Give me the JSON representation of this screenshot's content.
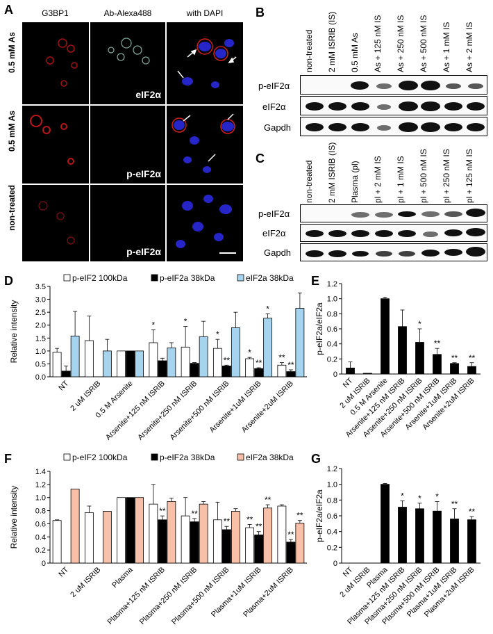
{
  "panelA": {
    "letter": "A",
    "col_titles": [
      "G3BP1",
      "Ab-Alexa488",
      "with DAPI"
    ],
    "row_labels": [
      "0.5 mM As",
      "0.5 mM As",
      "non-treated"
    ],
    "image_labels": [
      "eIF2α",
      "p-eIF2α",
      "p-eIF2α"
    ]
  },
  "panelB": {
    "letter": "B",
    "lanes": [
      "non-treated",
      "2 mM ISRIB (IS)",
      "0.5 mM As",
      "As + 125 nM IS",
      "As + 250 nM IS",
      "As + 500 nM IS",
      "As + 1 mM IS",
      "As + 2 mM IS"
    ],
    "rows": [
      "p-eIF2α",
      "eIF2α",
      "Gapdh"
    ]
  },
  "panelC": {
    "letter": "C",
    "lanes": [
      "non-treated",
      "2 mM ISRIB (IS)",
      "Plasma (pl)",
      "pl + 2 mM IS",
      "pl + 1 mM IS",
      "pl + 500 nM IS",
      "pl + 250 nM IS",
      "pl + 125 nM IS"
    ],
    "rows": [
      "p-eIF2α",
      "eIF2α",
      "Gapdh"
    ]
  },
  "colors": {
    "white_bar": "#ffffff",
    "black_bar": "#000000",
    "blue_bar": "#a6d4ee",
    "salmon_bar": "#f8c0a8"
  },
  "chart_data": [
    {
      "panel": "D",
      "type": "bar",
      "ylabel": "Relative intensity",
      "ylim": [
        0,
        3.5
      ],
      "yticks": [
        "0.0",
        "0.5",
        "1.0",
        "1.5",
        "2.0",
        "2.5",
        "3.0",
        "3.5"
      ],
      "categories": [
        "NT",
        "2 uM ISRIB",
        "0.5 M Arsenite",
        "Arsenite+125 nM ISRIB",
        "Arsenite+250 nM ISRIB",
        "Arsenite+500 nM ISRIB",
        "Arsenite+1uM ISRIB",
        "Arsenite+2uM ISRIB"
      ],
      "legend": [
        "p-eIF2   100kDa",
        "p-eIF2a   38kDa",
        "eIF2a   38kDa"
      ],
      "series": [
        {
          "name": "p-eIF2   100kDa",
          "values": [
            0.95,
            1.4,
            1.0,
            1.32,
            1.15,
            1.1,
            0.7,
            0.45
          ],
          "errors": [
            0.15,
            0.95,
            0,
            0.5,
            0.8,
            0.35,
            0.05,
            0.1
          ]
        },
        {
          "name": "p-eIF2a   38kDa",
          "values": [
            0.22,
            0.0,
            1.0,
            0.62,
            0.52,
            0.42,
            0.32,
            0.2
          ],
          "errors": [
            0.2,
            0,
            0,
            0.1,
            0.03,
            0.03,
            0.03,
            0.07
          ]
        },
        {
          "name": "eIF2a   38kDa",
          "values": [
            1.58,
            1.0,
            1.0,
            1.12,
            1.55,
            1.9,
            2.27,
            2.65
          ],
          "errors": [
            0.95,
            0.45,
            0,
            0.2,
            0.6,
            0.6,
            0.17,
            0.6
          ]
        }
      ],
      "annotations": [
        {
          "cat": 3,
          "series": 0,
          "text": "*"
        },
        {
          "cat": 4,
          "series": 0,
          "text": "*"
        },
        {
          "cat": 5,
          "series": 0,
          "text": "*"
        },
        {
          "cat": 5,
          "series": 1,
          "text": "**"
        },
        {
          "cat": 6,
          "series": 0,
          "text": "*"
        },
        {
          "cat": 6,
          "series": 1,
          "text": "**"
        },
        {
          "cat": 6,
          "series": 2,
          "text": "*"
        },
        {
          "cat": 7,
          "series": 0,
          "text": "**"
        },
        {
          "cat": 7,
          "series": 1,
          "text": "**"
        }
      ]
    },
    {
      "panel": "E",
      "type": "bar",
      "ylabel": "p-eIF2a/eIF2a",
      "ylim": [
        0,
        1.2
      ],
      "yticks": [
        "0",
        "0.2",
        "0.4",
        "0.6",
        "0.8",
        "1.0",
        "1.2"
      ],
      "categories": [
        "NT",
        "2 uM ISRIB",
        "0.5 M Arsenite",
        "Arsenite+125 nM ISRIB",
        "Arsenite+250 nM ISRIB",
        "Arsenite+500 nM ISRIB",
        "Arsenite+1uM ISRIB",
        "Arsenite+2uM ISRIB"
      ],
      "series": [
        {
          "values": [
            0.08,
            0.01,
            1.0,
            0.63,
            0.42,
            0.26,
            0.14,
            0.1
          ],
          "errors": [
            0.08,
            0.0,
            0.02,
            0.22,
            0.18,
            0.08,
            0.01,
            0.05
          ]
        }
      ],
      "annotations": [
        {
          "cat": 4,
          "text": "*"
        },
        {
          "cat": 5,
          "text": "**"
        },
        {
          "cat": 6,
          "text": "**"
        },
        {
          "cat": 7,
          "text": "**"
        }
      ]
    },
    {
      "panel": "F",
      "type": "bar",
      "ylabel": "Relative intensity",
      "ylim": [
        0,
        1.4
      ],
      "yticks": [
        "0",
        "0.2",
        "0.4",
        "0.6",
        "0.8",
        "1.0",
        "1.2",
        "1.4"
      ],
      "categories": [
        "NT",
        "2 uM ISRIB",
        "Plasma",
        "Plasma+125 nM ISRIB",
        "Plasma+250 nM ISRIB",
        "Plasma+500 nM ISRIB",
        "Plasma+1uM ISRIB",
        "Plasma+2uM ISRIB"
      ],
      "legend": [
        "p-eIF2   100kDa",
        "p-eIF2a   38kDa",
        "eIF2a   38kDa"
      ],
      "series": [
        {
          "name": "p-eIF2   100kDa",
          "values": [
            0.65,
            0.77,
            1.0,
            0.9,
            0.72,
            0.66,
            0.54,
            0.87
          ],
          "errors": [
            0.01,
            0.1,
            0,
            0.3,
            0.28,
            0.27,
            0.05,
            0.02
          ]
        },
        {
          "name": "p-eIF2a   38kDa",
          "values": [
            0.0,
            0.0,
            1.0,
            0.66,
            0.63,
            0.51,
            0.43,
            0.32
          ],
          "errors": [
            0,
            0,
            0,
            0.06,
            0.05,
            0.05,
            0.05,
            0.04
          ]
        },
        {
          "name": "eIF2a   38kDa",
          "values": [
            1.13,
            0.79,
            1.0,
            0.94,
            0.9,
            0.79,
            0.84,
            0.61
          ],
          "errors": [
            0,
            0,
            0,
            0.05,
            0.04,
            0.04,
            0.05,
            0.04
          ]
        }
      ],
      "annotations": [
        {
          "cat": 3,
          "series": 1,
          "text": "**"
        },
        {
          "cat": 4,
          "series": 1,
          "text": "**"
        },
        {
          "cat": 5,
          "series": 1,
          "text": "**"
        },
        {
          "cat": 6,
          "series": 0,
          "text": "**"
        },
        {
          "cat": 6,
          "series": 1,
          "text": "**"
        },
        {
          "cat": 6,
          "series": 2,
          "text": "**"
        },
        {
          "cat": 7,
          "series": 1,
          "text": "**"
        },
        {
          "cat": 7,
          "series": 2,
          "text": "**"
        }
      ]
    },
    {
      "panel": "G",
      "type": "bar",
      "ylabel": "p-eIF2a/eIF2a",
      "ylim": [
        0,
        1.2
      ],
      "yticks": [
        "0",
        "0.2",
        "0.4",
        "0.6",
        "0.8",
        "1.0",
        "1.2"
      ],
      "categories": [
        "NT",
        "2 uM ISRIB",
        "Plasma",
        "Plasma+125 nM ISRIB",
        "Plasma+250 nM ISRIB",
        "Plasma+500 nM ISRIB",
        "Plasma+1uM ISRIB",
        "Plasma+2uM ISRIB"
      ],
      "series": [
        {
          "values": [
            0.0,
            0.0,
            1.0,
            0.71,
            0.69,
            0.66,
            0.56,
            0.55
          ],
          "errors": [
            0,
            0,
            0.01,
            0.08,
            0.07,
            0.12,
            0.13,
            0.04
          ]
        }
      ],
      "annotations": [
        {
          "cat": 3,
          "text": "*"
        },
        {
          "cat": 4,
          "text": "*"
        },
        {
          "cat": 5,
          "text": "*"
        },
        {
          "cat": 6,
          "text": "**"
        },
        {
          "cat": 7,
          "text": "**"
        }
      ]
    }
  ]
}
